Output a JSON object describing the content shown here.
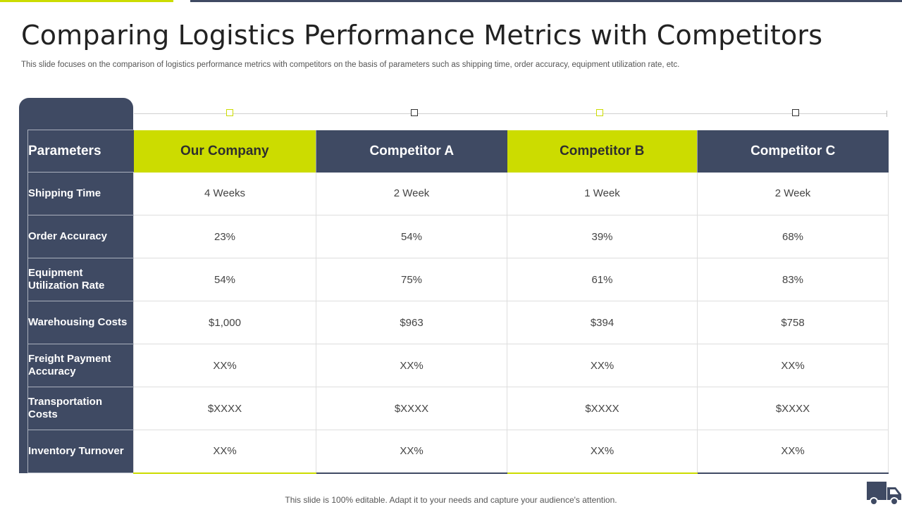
{
  "title": "Comparing Logistics Performance Metrics with Competitors",
  "subtitle": "This slide focuses on the comparison of logistics performance metrics with competitors on the basis of parameters such as shipping time, order accuracy, equipment utilization rate, etc.",
  "colors": {
    "accent_green": "#ccdc00",
    "navy": "#3f4a63"
  },
  "table": {
    "param_header": "Parameters",
    "columns": [
      "Our Company",
      "Competitor A",
      "Competitor B",
      "Competitor C"
    ],
    "rows": [
      {
        "label": "Shipping Time",
        "values": [
          "4 Weeks",
          "2 Week",
          "1 Week",
          "2 Week"
        ]
      },
      {
        "label": "Order Accuracy",
        "values": [
          "23%",
          "54%",
          "39%",
          "68%"
        ]
      },
      {
        "label": "Equipment Utilization Rate",
        "values": [
          "54%",
          "75%",
          "61%",
          "83%"
        ]
      },
      {
        "label": "Warehousing Costs",
        "values": [
          "$1,000",
          "$963",
          "$394",
          "$758"
        ]
      },
      {
        "label": "Freight Payment Accuracy",
        "values": [
          "XX%",
          "XX%",
          "XX%",
          "XX%"
        ]
      },
      {
        "label": "Transportation Costs",
        "values": [
          "$XXXX",
          "$XXXX",
          "$XXXX",
          "$XXXX"
        ]
      },
      {
        "label": "Inventory Turnover",
        "values": [
          "XX%",
          "XX%",
          "XX%",
          "XX%"
        ]
      }
    ]
  },
  "footer": "This slide is 100% editable. Adapt it to your needs and capture your audience's attention.",
  "icons": {
    "corner": "truck-icon",
    "markers": "square-marker-icon"
  }
}
